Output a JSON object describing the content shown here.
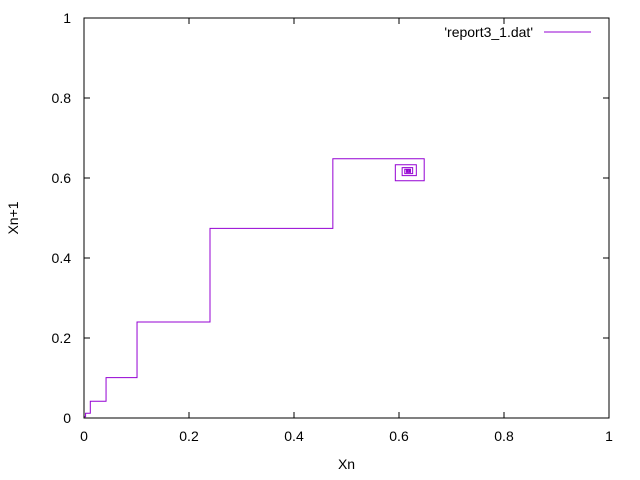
{
  "chart_data": {
    "type": "line",
    "title": "",
    "xlabel": "Xn",
    "ylabel": "Xn+1",
    "xlim": [
      0,
      1
    ],
    "ylim": [
      0,
      1
    ],
    "grid": false,
    "legend_position": "top-right",
    "x_ticks": [
      "0",
      "0.2",
      "0.4",
      "0.6",
      "0.8",
      "1"
    ],
    "y_ticks": [
      "0",
      "0.2",
      "0.4",
      "0.6",
      "0.8",
      "1"
    ],
    "series": [
      {
        "name": "'report3_1.dat'",
        "color": "#9400d3",
        "description": "cobweb iteration",
        "x": [
          0.0,
          0.003,
          0.003,
          0.012,
          0.012,
          0.042,
          0.042,
          0.101,
          0.101,
          0.24,
          0.24,
          0.474,
          0.474,
          0.648,
          0.648,
          0.593,
          0.593,
          0.633,
          0.633,
          0.606,
          0.606,
          0.626,
          0.626,
          0.611,
          0.611,
          0.622,
          0.622,
          0.614,
          0.614,
          0.62,
          0.62,
          0.616,
          0.616,
          0.619
        ],
        "y": [
          0.003,
          0.003,
          0.012,
          0.012,
          0.042,
          0.042,
          0.101,
          0.101,
          0.24,
          0.24,
          0.474,
          0.474,
          0.648,
          0.648,
          0.593,
          0.593,
          0.633,
          0.633,
          0.606,
          0.606,
          0.626,
          0.626,
          0.611,
          0.611,
          0.622,
          0.622,
          0.614,
          0.614,
          0.62,
          0.62,
          0.616,
          0.616,
          0.619,
          0.619
        ]
      }
    ]
  }
}
